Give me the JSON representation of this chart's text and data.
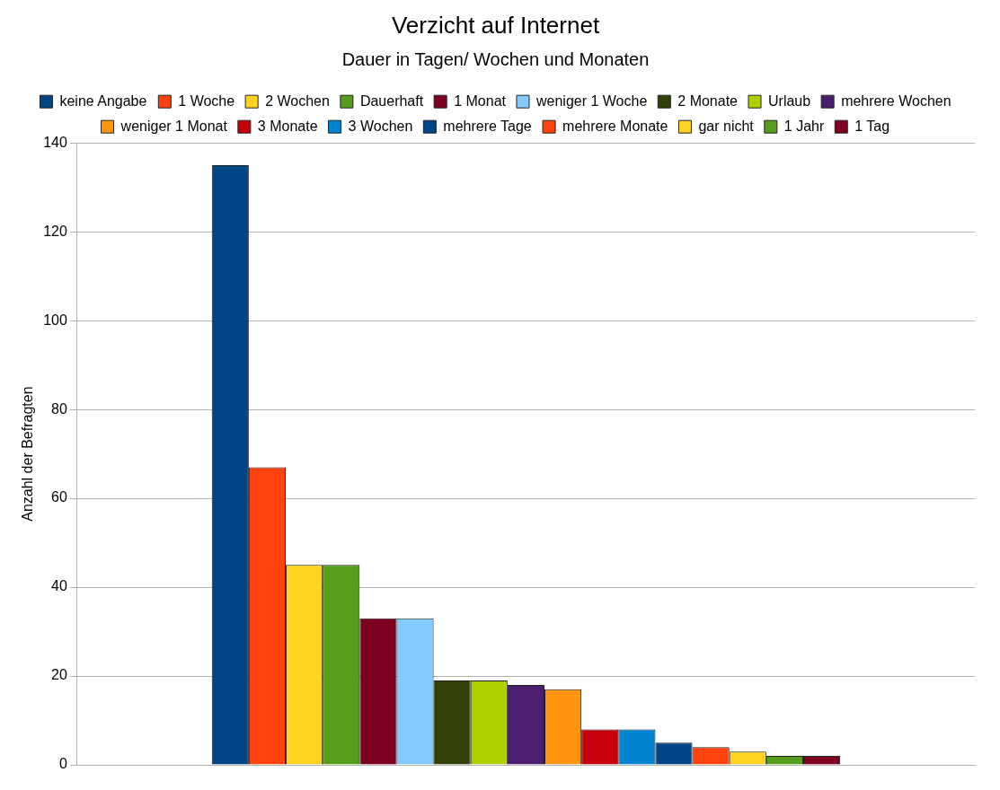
{
  "chart_data": {
    "type": "bar",
    "title": "Verzicht auf Internet",
    "subtitle": "Dauer in Tagen/ Wochen und Monaten",
    "ylabel": "Anzahl der Befragten",
    "categories": [
      null
    ],
    "series": [
      {
        "name": "keine Angabe",
        "color": "#004586",
        "values": [
          135
        ]
      },
      {
        "name": "1 Woche",
        "color": "#ff420e",
        "values": [
          67
        ]
      },
      {
        "name": "2 Wochen",
        "color": "#ffd320",
        "values": [
          45
        ]
      },
      {
        "name": "Dauerhaft",
        "color": "#579d1c",
        "values": [
          45
        ]
      },
      {
        "name": "1 Monat",
        "color": "#7e0021",
        "values": [
          33
        ]
      },
      {
        "name": "weniger 1 Woche",
        "color": "#83caff",
        "values": [
          33
        ]
      },
      {
        "name": "2 Monate",
        "color": "#314004",
        "values": [
          19
        ]
      },
      {
        "name": "Urlaub",
        "color": "#aecf00",
        "values": [
          19
        ]
      },
      {
        "name": "mehrere Wochen",
        "color": "#4b1f6f",
        "values": [
          18
        ]
      },
      {
        "name": "weniger 1 Monat",
        "color": "#ff950e",
        "values": [
          17
        ]
      },
      {
        "name": "3 Monate",
        "color": "#c5000b",
        "values": [
          8
        ]
      },
      {
        "name": "3 Wochen",
        "color": "#0084d1",
        "values": [
          8
        ]
      },
      {
        "name": "mehrere Tage",
        "color": "#004586",
        "values": [
          5
        ]
      },
      {
        "name": "mehrere Monate",
        "color": "#ff420e",
        "values": [
          4
        ]
      },
      {
        "name": "gar nicht",
        "color": "#ffd320",
        "values": [
          3
        ]
      },
      {
        "name": "1 Jahr",
        "color": "#579d1c",
        "values": [
          2
        ]
      },
      {
        "name": "1 Tag",
        "color": "#7e0021",
        "values": [
          2
        ]
      }
    ],
    "ylim": [
      0,
      140
    ],
    "yticks": [
      0,
      20,
      40,
      60,
      80,
      100,
      120,
      140
    ],
    "grid": "y",
    "legend": "top"
  }
}
